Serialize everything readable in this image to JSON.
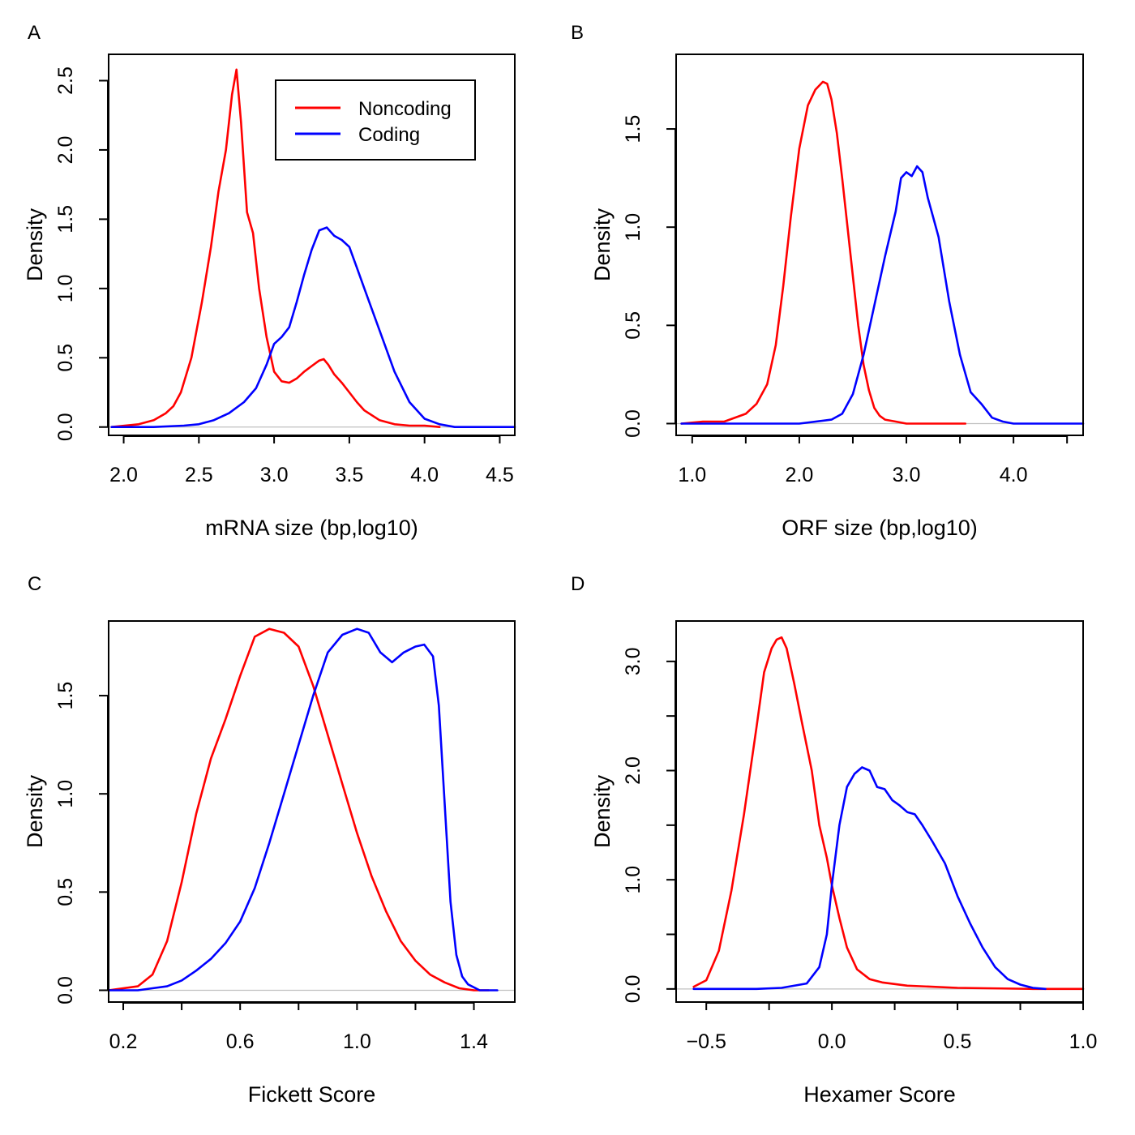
{
  "figure": {
    "panels": [
      "A",
      "B",
      "C",
      "D"
    ]
  },
  "colors": {
    "noncoding": "#ff0000",
    "coding": "#0000ff",
    "baseline": "#c0c0c0",
    "axis": "#000000"
  },
  "legend": {
    "entries": [
      {
        "label": "Noncoding",
        "color": "#ff0000"
      },
      {
        "label": "Coding",
        "color": "#0000ff"
      }
    ],
    "placement": "top-right"
  },
  "chart_data": [
    {
      "panel": "A",
      "type": "line",
      "xlabel": "mRNA size (bp,log10)",
      "ylabel": "Density",
      "xlim": [
        1.9,
        4.6
      ],
      "ylim": [
        -0.06,
        2.69
      ],
      "xticks": [
        2.0,
        2.5,
        3.0,
        3.5,
        4.0,
        4.5
      ],
      "xtick_labels": [
        "2.0",
        "2.5",
        "3.0",
        "3.5",
        "4.0",
        "4.5"
      ],
      "yticks": [
        0.0,
        0.5,
        1.0,
        1.5,
        2.0,
        2.5
      ],
      "ytick_labels": [
        "0.0",
        "0.5",
        "1.0",
        "1.5",
        "2.0",
        "2.5"
      ],
      "baseline": 0,
      "legend": true,
      "series": [
        {
          "name": "Noncoding",
          "color": "#ff0000",
          "x": [
            1.92,
            2.1,
            2.2,
            2.28,
            2.33,
            2.38,
            2.45,
            2.52,
            2.58,
            2.63,
            2.68,
            2.72,
            2.75,
            2.78,
            2.82,
            2.86,
            2.9,
            2.95,
            3.0,
            3.05,
            3.1,
            3.15,
            3.2,
            3.25,
            3.3,
            3.33,
            3.36,
            3.4,
            3.45,
            3.5,
            3.55,
            3.6,
            3.7,
            3.8,
            3.9,
            4.0,
            4.1
          ],
          "y": [
            0.0,
            0.02,
            0.05,
            0.1,
            0.15,
            0.25,
            0.5,
            0.9,
            1.3,
            1.7,
            2.0,
            2.4,
            2.58,
            2.2,
            1.55,
            1.4,
            1.0,
            0.65,
            0.4,
            0.33,
            0.32,
            0.35,
            0.4,
            0.44,
            0.48,
            0.49,
            0.45,
            0.38,
            0.32,
            0.25,
            0.18,
            0.12,
            0.05,
            0.02,
            0.01,
            0.01,
            0.0
          ]
        },
        {
          "name": "Coding",
          "color": "#0000ff",
          "x": [
            1.92,
            2.2,
            2.4,
            2.5,
            2.6,
            2.7,
            2.8,
            2.88,
            2.95,
            3.0,
            3.05,
            3.1,
            3.15,
            3.2,
            3.25,
            3.3,
            3.35,
            3.4,
            3.45,
            3.5,
            3.55,
            3.6,
            3.7,
            3.8,
            3.9,
            4.0,
            4.1,
            4.2,
            4.3,
            4.6
          ],
          "y": [
            0.0,
            0.0,
            0.01,
            0.02,
            0.05,
            0.1,
            0.18,
            0.28,
            0.45,
            0.6,
            0.65,
            0.72,
            0.9,
            1.1,
            1.28,
            1.42,
            1.44,
            1.38,
            1.35,
            1.3,
            1.15,
            1.0,
            0.7,
            0.4,
            0.18,
            0.06,
            0.02,
            0.0,
            0.0,
            0.0
          ]
        }
      ]
    },
    {
      "panel": "B",
      "type": "line",
      "xlabel": "ORF size (bp,log10)",
      "ylabel": "Density",
      "xlim": [
        0.85,
        4.65
      ],
      "ylim": [
        -0.06,
        1.88
      ],
      "xticks": [
        1.0,
        1.5,
        2.0,
        2.5,
        3.0,
        3.5,
        4.0,
        4.5
      ],
      "xtick_labels": [
        "1.0",
        "",
        "2.0",
        "",
        "3.0",
        "",
        "4.0",
        ""
      ],
      "yticks": [
        0.0,
        0.5,
        1.0,
        1.5
      ],
      "ytick_labels": [
        "0.0",
        "0.5",
        "1.0",
        "1.5"
      ],
      "baseline": 0,
      "legend": false,
      "series": [
        {
          "name": "Noncoding",
          "color": "#ff0000",
          "x": [
            0.9,
            1.1,
            1.3,
            1.5,
            1.6,
            1.7,
            1.78,
            1.85,
            1.92,
            2.0,
            2.08,
            2.15,
            2.22,
            2.26,
            2.3,
            2.35,
            2.4,
            2.45,
            2.5,
            2.55,
            2.6,
            2.65,
            2.7,
            2.75,
            2.8,
            2.9,
            3.0,
            3.2,
            3.55
          ],
          "y": [
            0.0,
            0.01,
            0.01,
            0.05,
            0.1,
            0.2,
            0.4,
            0.7,
            1.05,
            1.4,
            1.62,
            1.7,
            1.74,
            1.73,
            1.65,
            1.48,
            1.25,
            1.0,
            0.75,
            0.5,
            0.3,
            0.17,
            0.08,
            0.04,
            0.02,
            0.01,
            0.0,
            0.0,
            0.0
          ]
        },
        {
          "name": "Coding",
          "color": "#0000ff",
          "x": [
            0.9,
            1.5,
            2.0,
            2.3,
            2.4,
            2.5,
            2.6,
            2.7,
            2.8,
            2.9,
            2.95,
            3.0,
            3.05,
            3.1,
            3.15,
            3.2,
            3.25,
            3.3,
            3.4,
            3.5,
            3.6,
            3.7,
            3.8,
            3.9,
            4.0,
            4.2,
            4.4,
            4.65
          ],
          "y": [
            0.0,
            0.0,
            0.0,
            0.02,
            0.05,
            0.15,
            0.35,
            0.6,
            0.85,
            1.08,
            1.25,
            1.28,
            1.26,
            1.31,
            1.28,
            1.15,
            1.05,
            0.95,
            0.62,
            0.35,
            0.16,
            0.1,
            0.03,
            0.01,
            0.0,
            0.0,
            0.0,
            0.0
          ]
        }
      ]
    },
    {
      "panel": "C",
      "type": "line",
      "xlabel": "Fickett Score",
      "ylabel": "Density",
      "xlim": [
        0.15,
        1.54
      ],
      "ylim": [
        -0.06,
        1.88
      ],
      "xticks": [
        0.2,
        0.4,
        0.6,
        0.8,
        1.0,
        1.2,
        1.4
      ],
      "xtick_labels": [
        "0.2",
        "",
        "0.6",
        "",
        "1.0",
        "",
        "1.4"
      ],
      "yticks": [
        0.0,
        0.5,
        1.0,
        1.5
      ],
      "ytick_labels": [
        "0.0",
        "0.5",
        "1.0",
        "1.5"
      ],
      "baseline": 0,
      "legend": false,
      "series": [
        {
          "name": "Noncoding",
          "color": "#ff0000",
          "x": [
            0.15,
            0.25,
            0.3,
            0.35,
            0.4,
            0.45,
            0.5,
            0.55,
            0.6,
            0.65,
            0.7,
            0.75,
            0.8,
            0.85,
            0.9,
            0.95,
            1.0,
            1.05,
            1.1,
            1.15,
            1.2,
            1.25,
            1.3,
            1.35,
            1.4,
            1.45
          ],
          "y": [
            0.0,
            0.02,
            0.08,
            0.25,
            0.55,
            0.9,
            1.18,
            1.38,
            1.6,
            1.8,
            1.84,
            1.82,
            1.75,
            1.55,
            1.3,
            1.05,
            0.8,
            0.58,
            0.4,
            0.25,
            0.15,
            0.08,
            0.04,
            0.01,
            0.0,
            0.0
          ]
        },
        {
          "name": "Coding",
          "color": "#0000ff",
          "x": [
            0.15,
            0.25,
            0.3,
            0.35,
            0.4,
            0.45,
            0.5,
            0.55,
            0.6,
            0.65,
            0.7,
            0.75,
            0.8,
            0.85,
            0.9,
            0.95,
            1.0,
            1.04,
            1.08,
            1.12,
            1.16,
            1.2,
            1.23,
            1.26,
            1.28,
            1.3,
            1.32,
            1.34,
            1.36,
            1.38,
            1.42,
            1.48
          ],
          "y": [
            0.0,
            0.0,
            0.01,
            0.02,
            0.05,
            0.1,
            0.16,
            0.24,
            0.35,
            0.52,
            0.75,
            1.0,
            1.25,
            1.5,
            1.72,
            1.81,
            1.84,
            1.82,
            1.72,
            1.67,
            1.72,
            1.75,
            1.76,
            1.7,
            1.45,
            0.95,
            0.45,
            0.18,
            0.07,
            0.03,
            0.0,
            0.0
          ]
        }
      ]
    },
    {
      "panel": "D",
      "type": "line",
      "xlabel": "Hexamer Score",
      "ylabel": "Density",
      "xlim": [
        -0.62,
        1.0
      ],
      "ylim": [
        -0.12,
        3.37
      ],
      "xticks": [
        -0.5,
        -0.25,
        0.0,
        0.25,
        0.5,
        0.75,
        1.0
      ],
      "xtick_labels": [
        "−0.5",
        "",
        "0.0",
        "",
        "0.5",
        "",
        "1.0"
      ],
      "yticks": [
        0.0,
        0.5,
        1.0,
        1.5,
        2.0,
        2.5,
        3.0
      ],
      "ytick_labels": [
        "0.0",
        "",
        "1.0",
        "",
        "2.0",
        "",
        "3.0"
      ],
      "baseline": 0,
      "legend": false,
      "series": [
        {
          "name": "Noncoding",
          "color": "#ff0000",
          "x": [
            -0.55,
            -0.5,
            -0.45,
            -0.4,
            -0.35,
            -0.3,
            -0.27,
            -0.24,
            -0.22,
            -0.2,
            -0.18,
            -0.15,
            -0.12,
            -0.08,
            -0.05,
            -0.02,
            0.0,
            0.03,
            0.06,
            0.1,
            0.15,
            0.2,
            0.3,
            0.5,
            0.8,
            1.0
          ],
          "y": [
            0.02,
            0.08,
            0.35,
            0.9,
            1.6,
            2.4,
            2.9,
            3.12,
            3.2,
            3.22,
            3.12,
            2.8,
            2.45,
            2.0,
            1.5,
            1.2,
            0.95,
            0.65,
            0.38,
            0.18,
            0.09,
            0.06,
            0.03,
            0.01,
            0.0,
            0.0
          ]
        },
        {
          "name": "Coding",
          "color": "#0000ff",
          "x": [
            -0.55,
            -0.3,
            -0.2,
            -0.1,
            -0.05,
            -0.02,
            0.0,
            0.03,
            0.06,
            0.09,
            0.12,
            0.15,
            0.18,
            0.21,
            0.24,
            0.27,
            0.3,
            0.33,
            0.36,
            0.4,
            0.45,
            0.5,
            0.55,
            0.6,
            0.65,
            0.7,
            0.75,
            0.8,
            0.85
          ],
          "y": [
            0.0,
            0.0,
            0.01,
            0.05,
            0.2,
            0.5,
            0.95,
            1.5,
            1.85,
            1.97,
            2.03,
            2.0,
            1.85,
            1.83,
            1.73,
            1.68,
            1.62,
            1.6,
            1.5,
            1.35,
            1.15,
            0.85,
            0.6,
            0.38,
            0.2,
            0.09,
            0.04,
            0.01,
            0.0
          ]
        }
      ]
    }
  ]
}
